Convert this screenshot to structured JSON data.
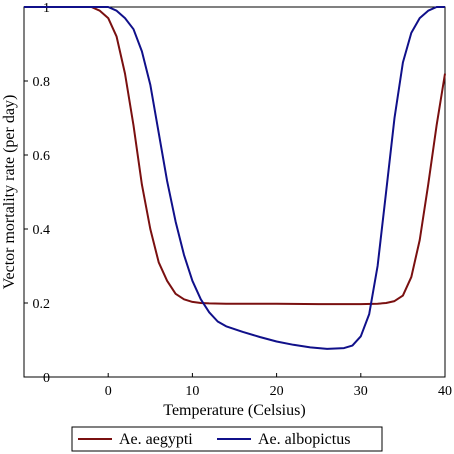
{
  "chart_data": {
    "type": "line",
    "title": "",
    "xlabel": "Temperature (Celsius)",
    "ylabel": "Vector mortality rate (per day)",
    "xlim": [
      -10,
      40
    ],
    "ylim": [
      0,
      1
    ],
    "xticks": [
      0,
      10,
      20,
      30,
      40
    ],
    "yticks": [
      0,
      0.2,
      0.4,
      0.6,
      0.8,
      1
    ],
    "grid": false,
    "legend_position": "bottom",
    "series": [
      {
        "name": "Ae. aegypti",
        "color": "#7a1010",
        "x": [
          -10,
          -2,
          -1,
          0,
          1,
          2,
          3,
          4,
          5,
          6,
          7,
          8,
          9,
          10,
          11,
          12,
          14,
          16,
          20,
          25,
          30,
          32,
          33,
          34,
          35,
          36,
          37,
          38,
          39,
          40
        ],
        "y": [
          1.0,
          1.0,
          0.99,
          0.97,
          0.92,
          0.82,
          0.68,
          0.52,
          0.4,
          0.31,
          0.26,
          0.225,
          0.21,
          0.203,
          0.2,
          0.199,
          0.198,
          0.198,
          0.198,
          0.197,
          0.197,
          0.198,
          0.2,
          0.205,
          0.22,
          0.27,
          0.37,
          0.52,
          0.68,
          0.82
        ]
      },
      {
        "name": "Ae. albopictus",
        "color": "#10108a",
        "x": [
          -10,
          0,
          1,
          2,
          3,
          4,
          5,
          6,
          7,
          8,
          9,
          10,
          11,
          12,
          13,
          14,
          16,
          18,
          20,
          22,
          24,
          26,
          28,
          29,
          30,
          31,
          32,
          33,
          34,
          35,
          36,
          37,
          38,
          39,
          40
        ],
        "y": [
          1.0,
          1.0,
          0.99,
          0.97,
          0.94,
          0.88,
          0.79,
          0.66,
          0.53,
          0.42,
          0.33,
          0.26,
          0.21,
          0.175,
          0.15,
          0.137,
          0.122,
          0.108,
          0.096,
          0.087,
          0.08,
          0.076,
          0.078,
          0.085,
          0.11,
          0.17,
          0.3,
          0.5,
          0.7,
          0.85,
          0.93,
          0.97,
          0.99,
          1.0,
          1.0
        ]
      }
    ]
  }
}
